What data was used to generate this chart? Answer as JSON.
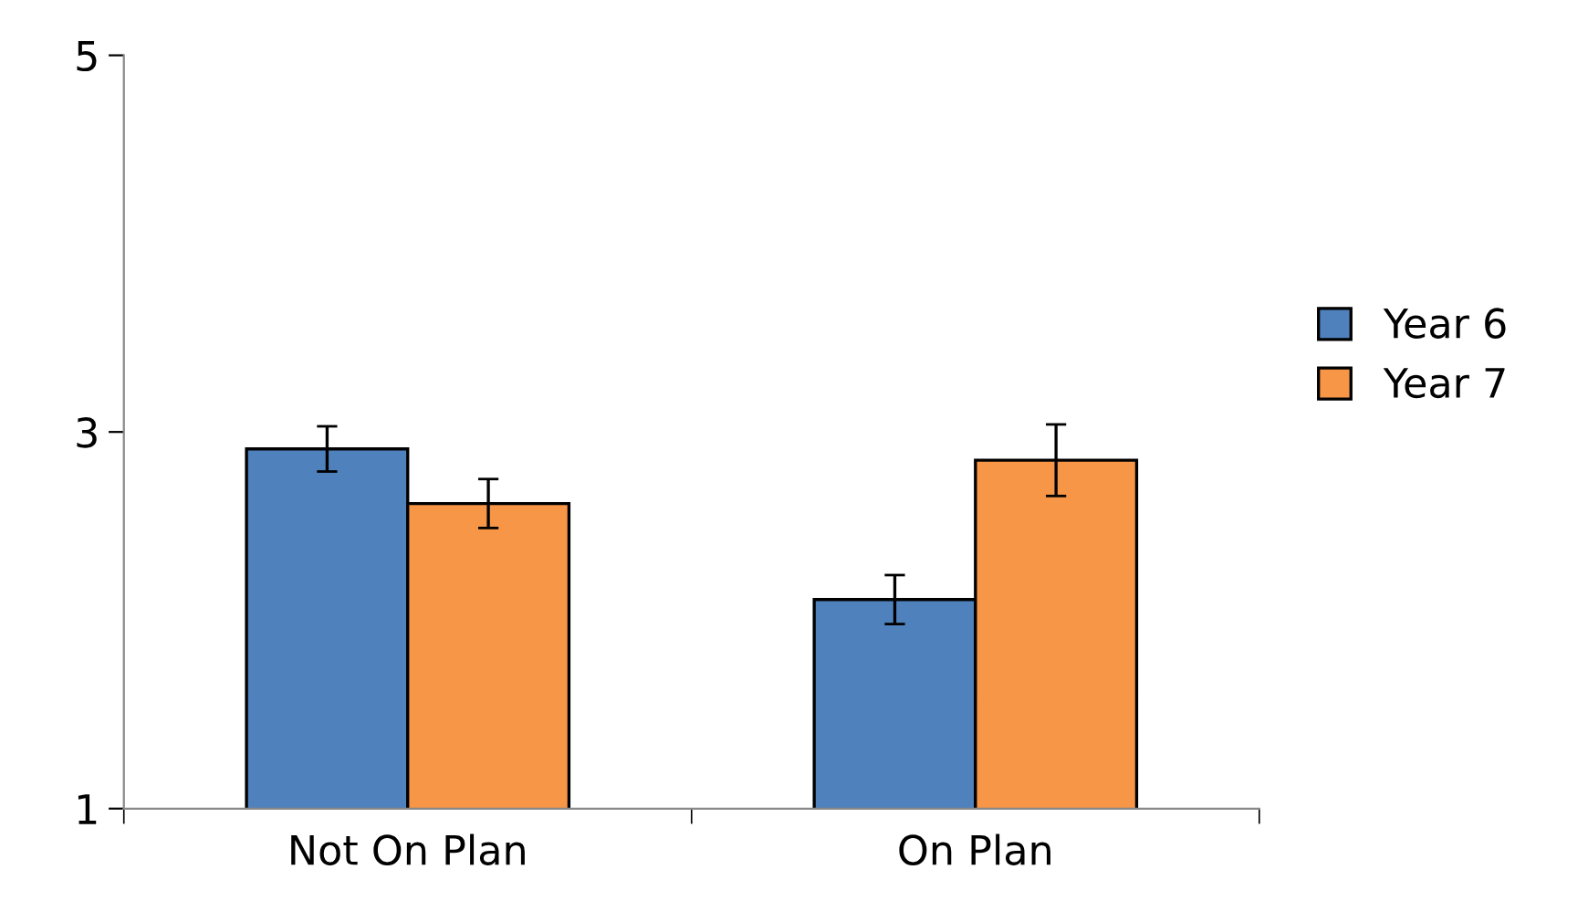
{
  "chart_data": {
    "type": "bar",
    "categories": [
      "Not On Plan",
      "On Plan"
    ],
    "series": [
      {
        "name": "Year 6",
        "color": "#4f81bd",
        "values": [
          2.91,
          2.11
        ],
        "errors": [
          0.12,
          0.13
        ]
      },
      {
        "name": "Year 7",
        "color": "#f79646",
        "values": [
          2.62,
          2.85
        ],
        "errors": [
          0.13,
          0.19
        ]
      }
    ],
    "ylim": [
      1,
      5
    ],
    "yticks": [
      1,
      3,
      5
    ],
    "grid": false,
    "legend": "right"
  }
}
